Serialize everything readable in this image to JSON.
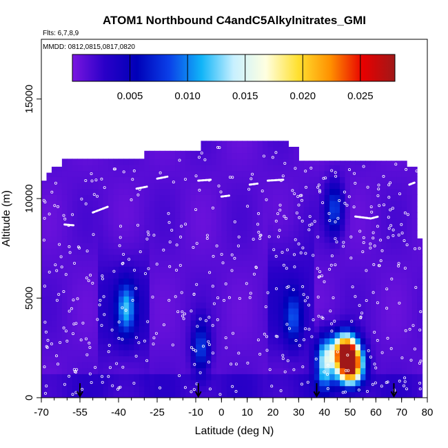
{
  "chart_data": {
    "type": "heatmap",
    "title": "ATOM1 Northbound C4andC5Alkylnitrates_GMI",
    "annotations": [
      "Flts: 6,7,8,9",
      "MMDD: 0812,0815,0817,0820"
    ],
    "xlabel": "Latitude (deg N)",
    "ylabel": "Altitude (m)",
    "xlim": [
      -70,
      80
    ],
    "ylim": [
      0,
      18000
    ],
    "x_tick_labels": [
      "-70",
      "-55",
      "-40",
      "-25",
      "-10",
      "0",
      "10",
      "20",
      "30",
      "40",
      "50",
      "60",
      "70",
      "80"
    ],
    "y_tick_labels": [
      "0",
      "5000",
      "10000",
      "15000"
    ],
    "colorbar": {
      "range": [
        0,
        0.028
      ],
      "tick_labels": [
        "0.005",
        "0.010",
        "0.015",
        "0.020",
        "0.025"
      ],
      "colors": [
        "#7a16e0",
        "#2a00c8",
        "#0000b8",
        "#0a40e8",
        "#10b4f8",
        "#c8f0ff",
        "#ffffe0",
        "#ffe030",
        "#ff9000",
        "#e80000",
        "#a01818"
      ]
    },
    "arrow_latitudes": [
      -55,
      -9,
      37,
      67
    ],
    "hotspots": [
      {
        "lat": 50,
        "alt": 1600,
        "value": 0.026
      },
      {
        "lat": 48,
        "alt": 2400,
        "value": 0.022
      },
      {
        "lat": 40,
        "alt": 1800,
        "value": 0.012
      },
      {
        "lat": -37,
        "alt": 4500,
        "value": 0.008
      },
      {
        "lat": -8,
        "alt": 2500,
        "value": 0.007
      },
      {
        "lat": 44,
        "alt": 9500,
        "value": 0.007
      },
      {
        "lat": 28,
        "alt": 4000,
        "value": 0.006
      }
    ]
  }
}
